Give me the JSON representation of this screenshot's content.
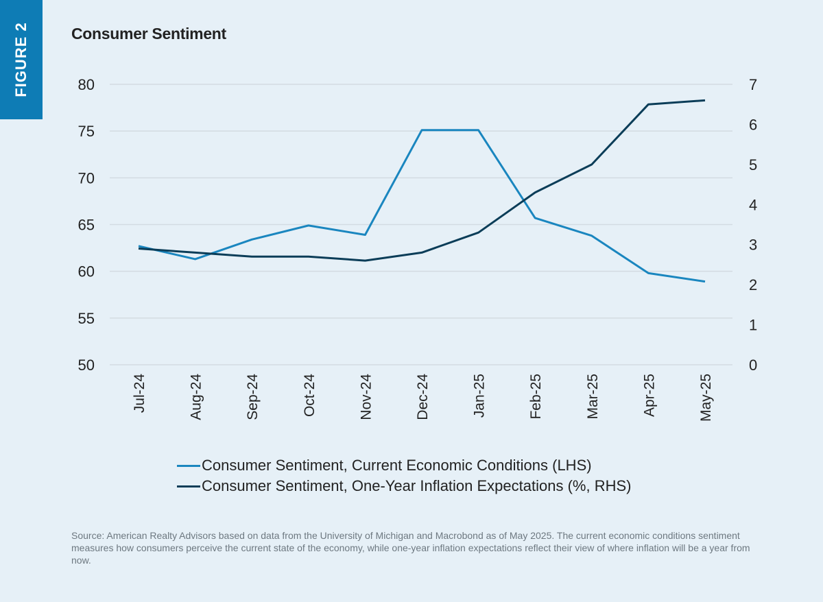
{
  "figure_label": "FIGURE 2",
  "chart_data": {
    "type": "line",
    "title": "Consumer Sentiment",
    "categories": [
      "Jul-24",
      "Aug-24",
      "Sep-24",
      "Oct-24",
      "Nov-24",
      "Dec-24",
      "Jan-25",
      "Feb-25",
      "Mar-25",
      "Apr-25",
      "May-25"
    ],
    "y_left": {
      "range": [
        50,
        80
      ],
      "ticks": [
        "50",
        "55",
        "60",
        "65",
        "70",
        "75",
        "80"
      ]
    },
    "y_right": {
      "range": [
        0,
        7
      ],
      "ticks": [
        "0",
        "1",
        "2",
        "3",
        "4",
        "5",
        "6",
        "7"
      ]
    },
    "grid": "horizontal",
    "legend_position": "bottom",
    "series": [
      {
        "name": "Consumer Sentiment, Current Economic Conditions (LHS)",
        "axis": "left",
        "color": "#1a86bf",
        "values": [
          62.7,
          61.3,
          63.4,
          64.9,
          63.9,
          75.1,
          75.1,
          65.7,
          63.8,
          59.8,
          58.9
        ]
      },
      {
        "name": "Consumer Sentiment, One-Year Inflation Expectations (%, RHS)",
        "axis": "right",
        "color": "#0b3d58",
        "values": [
          2.9,
          2.8,
          2.7,
          2.7,
          2.6,
          2.8,
          3.3,
          4.3,
          5.0,
          6.5,
          6.6
        ]
      }
    ]
  },
  "source": "Source: American Realty Advisors based on data from the University of Michigan and Macrobond as of May 2025. The current economic conditions sentiment measures how consumers perceive the current state of the economy, while one-year inflation expectations reflect their view of where inflation will be a year from now."
}
